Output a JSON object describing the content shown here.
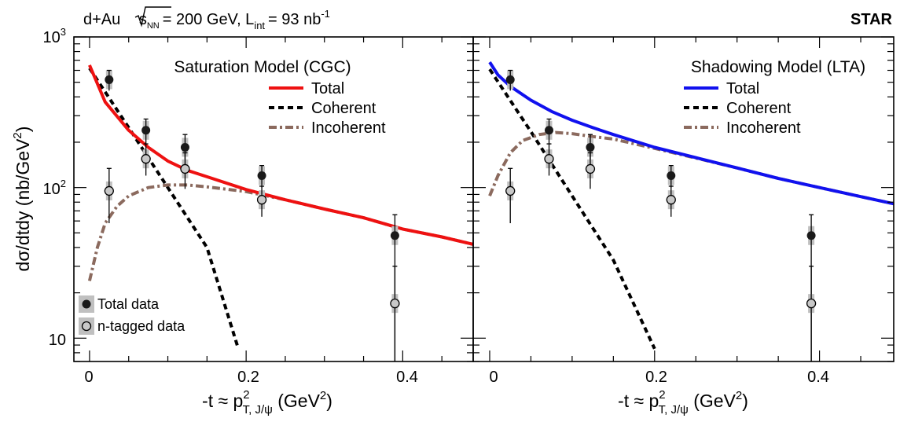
{
  "header": {
    "system": "d+Au",
    "energy_symbol": "s",
    "energy_sub": "NN",
    "energy_value": "= 200 GeV, L",
    "lumi_sub": "int",
    "lumi_value": "= 93 nb",
    "lumi_exp": "-1",
    "experiment": "STAR"
  },
  "y_axis": {
    "label_main": "dσ/dtdy (nb/GeV",
    "label_exp": "2",
    "label_close": ")",
    "tick_labels": [
      {
        "base": "10",
        "exp": "3"
      },
      {
        "base": "10",
        "exp": "2"
      },
      {
        "base": "10",
        "exp": ""
      }
    ]
  },
  "x_axis": {
    "label_lead": "-t ≈ p",
    "label_sup": "2",
    "label_sub": "T, J/ψ",
    "label_unit": " (GeV",
    "label_unit_exp": "2",
    "label_close": ")",
    "tick_labels": [
      "0",
      "0.2",
      "0.4"
    ]
  },
  "legend_data": {
    "total_label": "Total data",
    "ntag_label": "n-tagged data"
  },
  "colors": {
    "cgc_total": "#ee1111",
    "lta_total": "#1111ee",
    "coherent": "#000000",
    "incoherent": "#8b6a5e",
    "total_marker": "#1a1a1a",
    "ntag_marker": "#c8c8c8",
    "syst_box": "#c0c0c0"
  },
  "chart_data": [
    {
      "type": "line",
      "panel": "left",
      "title": "Saturation Model (CGC)",
      "xlim": [
        -0.02,
        0.49
      ],
      "ylim": [
        7,
        1000
      ],
      "log_y": true,
      "legend_position": "top-right",
      "series": [
        {
          "name": "Total",
          "style": "solid",
          "points": [
            [
              0.0,
              650
            ],
            [
              0.02,
              370
            ],
            [
              0.05,
              240
            ],
            [
              0.075,
              185
            ],
            [
              0.1,
              150
            ],
            [
              0.125,
              130
            ],
            [
              0.15,
              118
            ],
            [
              0.2,
              97
            ],
            [
              0.25,
              83
            ],
            [
              0.3,
              72
            ],
            [
              0.35,
              63
            ],
            [
              0.4,
              53
            ],
            [
              0.45,
              47
            ],
            [
              0.49,
              42
            ]
          ]
        },
        {
          "name": "Coherent",
          "style": "dashed",
          "points": [
            [
              0.0,
              620
            ],
            [
              0.05,
              250
            ],
            [
              0.1,
              100
            ],
            [
              0.15,
              40
            ],
            [
              0.19,
              8.5
            ]
          ]
        },
        {
          "name": "Incoherent",
          "style": "dash-dot",
          "points": [
            [
              0.0,
              24
            ],
            [
              0.01,
              40
            ],
            [
              0.02,
              58
            ],
            [
              0.035,
              75
            ],
            [
              0.05,
              88
            ],
            [
              0.075,
              100
            ],
            [
              0.1,
              104
            ],
            [
              0.125,
              104
            ],
            [
              0.15,
              101
            ],
            [
              0.2,
              94
            ],
            [
              0.25,
              83
            ],
            [
              0.3,
              72
            ],
            [
              0.35,
              63
            ],
            [
              0.4,
              53
            ],
            [
              0.45,
              47
            ],
            [
              0.49,
              42
            ]
          ]
        }
      ],
      "data_points": [
        {
          "name": "Total data",
          "x": [
            0.025,
            0.072,
            0.122,
            0.22,
            0.39
          ],
          "y": [
            520,
            240,
            185,
            120,
            48
          ],
          "err_low": [
            440,
            195,
            145,
            100,
            4
          ],
          "err_high": [
            600,
            285,
            225,
            140,
            66
          ]
        },
        {
          "name": "n-tagged data",
          "x": [
            0.025,
            0.072,
            0.122,
            0.22,
            0.39
          ],
          "y": [
            95,
            155,
            133,
            83,
            17
          ],
          "err_low": [
            58,
            120,
            98,
            64,
            4
          ],
          "err_high": [
            134,
            195,
            170,
            102,
            30
          ]
        }
      ]
    },
    {
      "type": "line",
      "panel": "right",
      "title": "Shadowing Model (LTA)",
      "xlim": [
        -0.02,
        0.49
      ],
      "ylim": [
        7,
        1000
      ],
      "log_y": true,
      "legend_position": "top-right",
      "series": [
        {
          "name": "Total",
          "style": "solid",
          "points": [
            [
              0.0,
              680
            ],
            [
              0.01,
              560
            ],
            [
              0.025,
              470
            ],
            [
              0.05,
              380
            ],
            [
              0.075,
              320
            ],
            [
              0.1,
              280
            ],
            [
              0.125,
              250
            ],
            [
              0.15,
              225
            ],
            [
              0.2,
              185
            ],
            [
              0.25,
              158
            ],
            [
              0.3,
              135
            ],
            [
              0.35,
              115
            ],
            [
              0.4,
              100
            ],
            [
              0.45,
              87
            ],
            [
              0.49,
              78
            ]
          ]
        },
        {
          "name": "Coherent",
          "style": "dashed",
          "points": [
            [
              0.0,
              610
            ],
            [
              0.05,
              235
            ],
            [
              0.1,
              88
            ],
            [
              0.15,
              33
            ],
            [
              0.2,
              8.5
            ]
          ]
        },
        {
          "name": "Incoherent",
          "style": "dash-dot",
          "points": [
            [
              0.0,
              88
            ],
            [
              0.01,
              120
            ],
            [
              0.025,
              170
            ],
            [
              0.04,
              205
            ],
            [
              0.06,
              225
            ],
            [
              0.08,
              232
            ],
            [
              0.1,
              228
            ],
            [
              0.125,
              218
            ],
            [
              0.15,
              210
            ],
            [
              0.2,
              182
            ],
            [
              0.25,
              157
            ],
            [
              0.3,
              135
            ],
            [
              0.35,
              115
            ],
            [
              0.4,
              100
            ],
            [
              0.45,
              87
            ],
            [
              0.49,
              78
            ]
          ]
        }
      ],
      "data_points": [
        {
          "name": "Total data",
          "x": [
            0.025,
            0.072,
            0.122,
            0.22,
            0.39
          ],
          "y": [
            520,
            240,
            185,
            120,
            48
          ],
          "err_low": [
            440,
            195,
            145,
            100,
            4
          ],
          "err_high": [
            600,
            285,
            225,
            140,
            66
          ]
        },
        {
          "name": "n-tagged data",
          "x": [
            0.025,
            0.072,
            0.122,
            0.22,
            0.39
          ],
          "y": [
            95,
            155,
            133,
            83,
            17
          ],
          "err_low": [
            58,
            120,
            98,
            64,
            4
          ],
          "err_high": [
            134,
            195,
            170,
            102,
            30
          ]
        }
      ]
    }
  ]
}
